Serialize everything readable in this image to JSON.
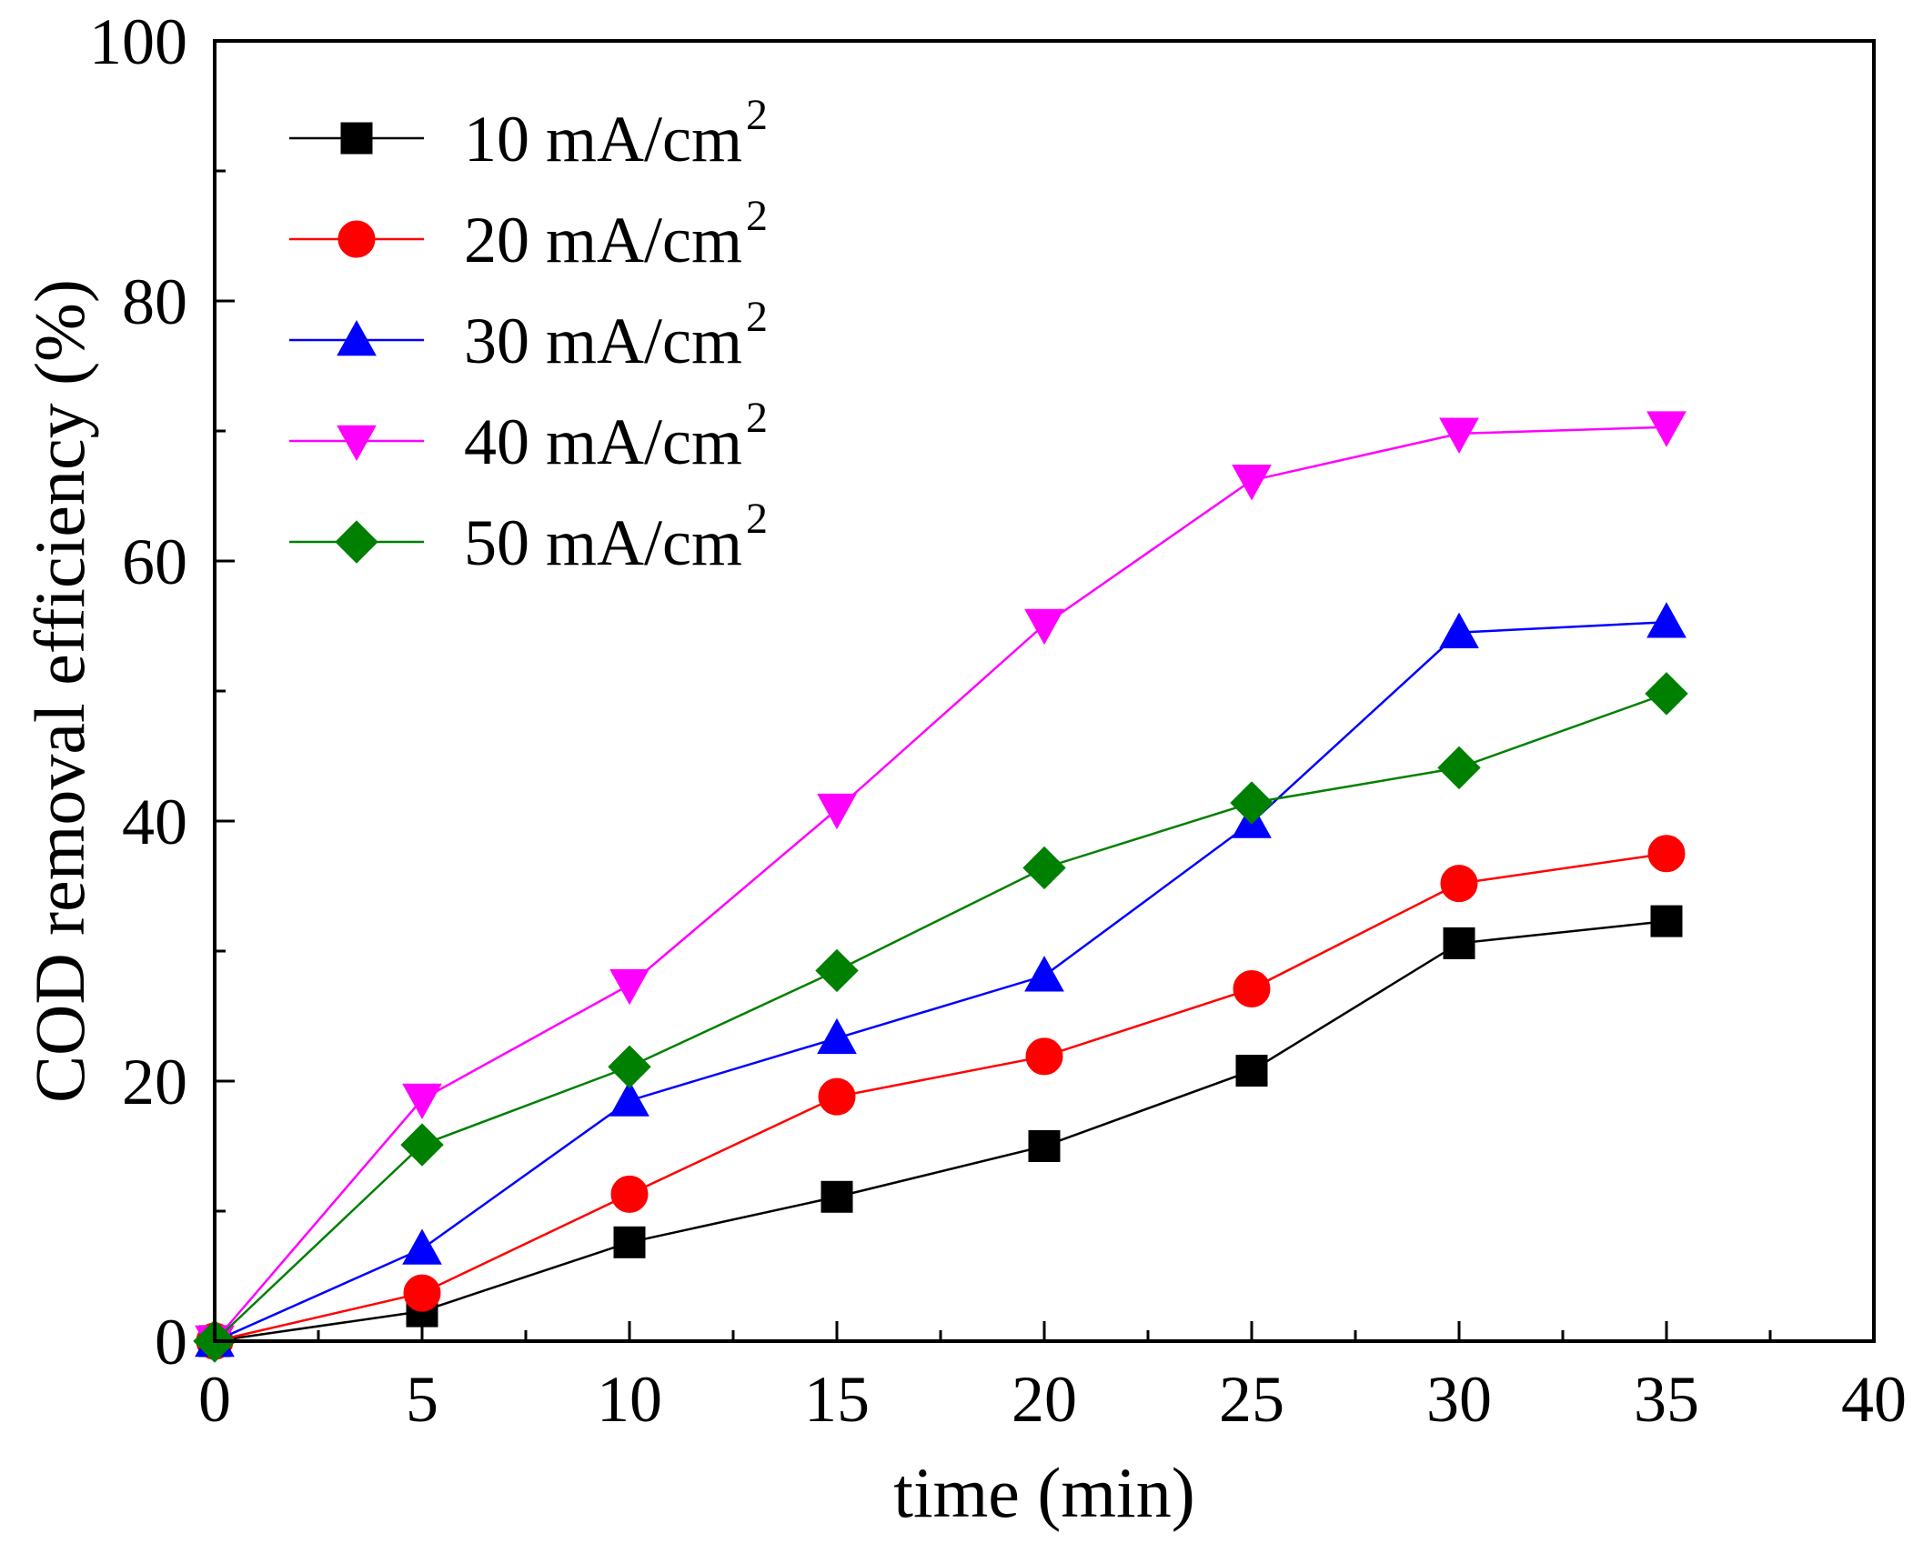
{
  "chart_data": {
    "type": "line",
    "title": "",
    "xlabel": "time (min)",
    "ylabel": "COD removal efficiency (%)",
    "xlim": [
      0,
      40
    ],
    "ylim": [
      0,
      100
    ],
    "xticks": [
      0,
      5,
      10,
      15,
      20,
      25,
      30,
      35,
      40
    ],
    "yticks": [
      0,
      20,
      40,
      60,
      80,
      100
    ],
    "xtick_labels": [
      "0",
      "5",
      "10",
      "15",
      "20",
      "25",
      "30",
      "35",
      "40"
    ],
    "ytick_labels": [
      "0",
      "20",
      "40",
      "60",
      "80",
      "100"
    ],
    "grid": false,
    "legend_position": "top-left",
    "x": [
      0,
      5,
      10,
      15,
      20,
      25,
      30,
      35
    ],
    "series": [
      {
        "name": "10 mA/cm",
        "sup": "2",
        "color": "#000000",
        "marker": "square",
        "values": [
          0,
          2.3,
          7.6,
          11.1,
          15.0,
          20.8,
          30.6,
          32.3
        ]
      },
      {
        "name": "20 mA/cm",
        "sup": "2",
        "color": "#ff0000",
        "marker": "circle",
        "values": [
          0,
          3.7,
          11.3,
          18.8,
          21.9,
          27.1,
          35.2,
          37.5
        ]
      },
      {
        "name": "30 mA/cm",
        "sup": "2",
        "color": "#0000ff",
        "marker": "triangle-up",
        "values": [
          0,
          7.1,
          18.5,
          23.3,
          28.1,
          39.9,
          54.5,
          55.3
        ]
      },
      {
        "name": "40 mA/cm",
        "sup": "2",
        "color": "#ff00ff",
        "marker": "triangle-down",
        "values": [
          0,
          18.6,
          27.4,
          40.9,
          55.1,
          66.2,
          69.8,
          70.3
        ]
      },
      {
        "name": "50 mA/cm",
        "sup": "2",
        "color": "#008000",
        "marker": "diamond",
        "values": [
          0,
          15.1,
          21.1,
          28.5,
          36.4,
          41.4,
          44.1,
          49.8
        ]
      }
    ]
  }
}
